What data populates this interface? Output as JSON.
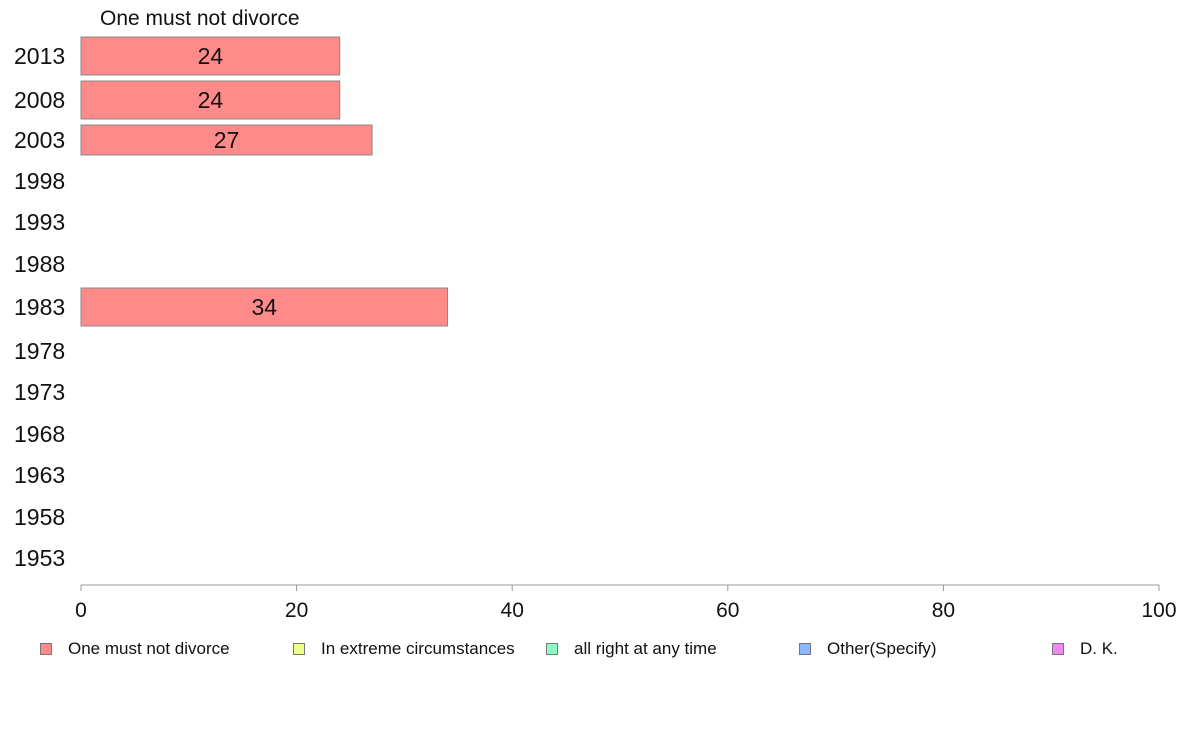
{
  "chart_data": {
    "type": "bar",
    "orientation": "horizontal",
    "title": "One must not divorce",
    "categories": [
      "2013",
      "2008",
      "2003",
      "1998",
      "1993",
      "1988",
      "1983",
      "1978",
      "1973",
      "1968",
      "1963",
      "1958",
      "1953"
    ],
    "series": [
      {
        "name": "One must not divorce",
        "color": "#ff8a8a",
        "values": [
          24,
          24,
          27,
          null,
          null,
          null,
          34,
          null,
          null,
          null,
          null,
          null,
          null
        ]
      }
    ],
    "data_labels": [
      "24",
      "24",
      "27",
      "",
      "",
      "",
      "34",
      "",
      "",
      "",
      "",
      "",
      ""
    ],
    "xlim": [
      0,
      100
    ],
    "xticks": [
      0,
      20,
      40,
      60,
      80,
      100
    ],
    "grid": false,
    "legend_position": "bottom"
  },
  "legend": [
    {
      "label": "One must not divorce",
      "color": "#ff8a8a"
    },
    {
      "label": "In extreme circumstances",
      "color": "#eeff8a"
    },
    {
      "label": "all right at any time",
      "color": "#8affc0"
    },
    {
      "label": "Other(Specify)",
      "color": "#8ab8ff"
    },
    {
      "label": "D. K.",
      "color": "#f08af0"
    }
  ]
}
